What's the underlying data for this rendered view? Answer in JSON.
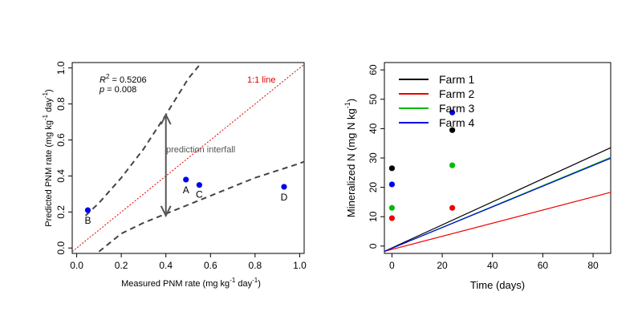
{
  "chart_data": [
    {
      "type": "scatter",
      "xlabel": {
        "base": "Measured PNM rate (mg kg",
        "exp1": "-1",
        "mid": " day",
        "exp2": "-1",
        "end": ")"
      },
      "ylabel": {
        "base": "Predicted PNM rate (mg kg",
        "exp1": "-1",
        "mid": " day",
        "exp2": "-1",
        "end": ")"
      },
      "xlim": [
        -0.02,
        1.02
      ],
      "ylim": [
        -0.03,
        1.03
      ],
      "x_ticks": [
        "0.0",
        "0.2",
        "0.4",
        "0.6",
        "0.8",
        "1.0"
      ],
      "y_ticks": [
        "0.0",
        "0.2",
        "0.4",
        "0.6",
        "0.8",
        "1.0"
      ],
      "stats": {
        "r2_label": "R",
        "r2_value": " = 0.5206",
        "p_label": "p",
        "p_value": " = 0.008"
      },
      "one_to_one_label": "1:1 line",
      "interval_label": "prediction interfall",
      "points": [
        {
          "label": "A",
          "x": 0.49,
          "y": 0.38
        },
        {
          "label": "B",
          "x": 0.05,
          "y": 0.21
        },
        {
          "label": "C",
          "x": 0.55,
          "y": 0.35
        },
        {
          "label": "D",
          "x": 0.93,
          "y": 0.34
        }
      ],
      "prediction_upper": {
        "x": [
          0.04,
          0.1,
          0.2,
          0.3,
          0.4,
          0.5,
          0.56
        ],
        "y": [
          0.18,
          0.25,
          0.39,
          0.55,
          0.74,
          0.94,
          1.06
        ]
      },
      "prediction_lower": {
        "x": [
          0.1,
          0.2,
          0.3,
          0.4,
          0.5,
          0.6,
          0.7,
          0.8,
          0.9,
          1.0,
          1.03
        ],
        "y": [
          -0.02,
          0.08,
          0.14,
          0.19,
          0.24,
          0.29,
          0.34,
          0.39,
          0.43,
          0.47,
          0.48
        ]
      },
      "interval_arrow": {
        "x": 0.4,
        "y_top": 0.74,
        "y_bottom": 0.18
      },
      "colors": {
        "points": "#0000ee",
        "one_to_one": "#dd0000",
        "interval": "#444444",
        "arrow": "#555555"
      }
    },
    {
      "type": "scatter",
      "xlabel": "Time (days)",
      "ylabel": {
        "base": "Mineralized N  (mg N kg",
        "exp": "-1",
        "end": ")"
      },
      "xlim": [
        -3,
        87
      ],
      "ylim": [
        -2.5,
        62.5
      ],
      "x_ticks": [
        "0",
        "20",
        "40",
        "60",
        "80"
      ],
      "y_ticks": [
        "0",
        "10",
        "20",
        "30",
        "40",
        "50",
        "60"
      ],
      "legend_position": "top-left",
      "series": [
        {
          "name": "Farm 1",
          "color": "#000000",
          "points": [
            {
              "x": 0,
              "y": 26.5
            },
            {
              "x": 24,
              "y": 39.5
            }
          ],
          "line": [
            {
              "x": -3,
              "y": -1.8
            },
            {
              "x": 87,
              "y": 33.5
            }
          ]
        },
        {
          "name": "Farm 2",
          "color": "#ee0000",
          "points": [
            {
              "x": 0,
              "y": 9.5
            },
            {
              "x": 24,
              "y": 13
            }
          ],
          "line": [
            {
              "x": -3,
              "y": -1.8
            },
            {
              "x": 87,
              "y": 18.3
            }
          ]
        },
        {
          "name": "Farm 3",
          "color": "#00bb00",
          "points": [
            {
              "x": 0,
              "y": 13
            },
            {
              "x": 24,
              "y": 27.5
            }
          ],
          "line": [
            {
              "x": -3,
              "y": -1.8
            },
            {
              "x": 87,
              "y": 30.2
            }
          ]
        },
        {
          "name": "Farm 4",
          "color": "#0000ee",
          "points": [
            {
              "x": 0,
              "y": 21
            },
            {
              "x": 24,
              "y": 45.5
            }
          ],
          "line": [
            {
              "x": -3,
              "y": -1.8
            },
            {
              "x": 87,
              "y": 29.9
            }
          ]
        }
      ]
    }
  ]
}
